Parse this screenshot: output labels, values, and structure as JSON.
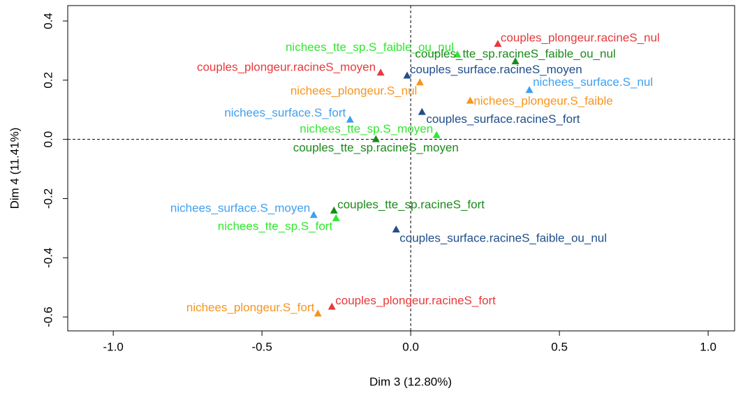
{
  "chart_data": {
    "type": "scatter",
    "xlabel": "Dim 3 (12.80%)",
    "ylabel": "Dim 4 (11.41%)",
    "labels": [
      "couples_plongeur.racineS_nul",
      "nichees_tte_sp.S_faible_ou_nul",
      "couples_tte_sp.racineS_faible_ou_nul",
      "couples_plongeur.racineS_moyen",
      "couples_surface.racineS_moyen",
      "nichees_plongeur.S_nul",
      "nichees_surface.S_nul",
      "nichees_plongeur.S_faible",
      "nichees_surface.S_fort",
      "couples_surface.racineS_fort",
      "nichees_tte_sp.S_moyen",
      "couples_tte_sp.racineS_moyen",
      "nichees_surface.S_moyen",
      "couples_tte_sp.racineS_fort",
      "nichees_tte_sp.S_fort",
      "couples_surface.racineS_faible_ou_nul",
      "couples_plongeur.racineS_fort",
      "nichees_plongeur.S_fort"
    ],
    "x": [
      0.293,
      0.157,
      0.352,
      -0.101,
      -0.012,
      0.031,
      0.399,
      0.2,
      -0.204,
      0.038,
      0.087,
      -0.117,
      -0.326,
      -0.258,
      -0.251,
      -0.049,
      -0.265,
      -0.312
    ],
    "values": [
      0.322,
      0.286,
      0.263,
      0.225,
      0.215,
      0.192,
      0.166,
      0.13,
      0.066,
      0.092,
      0.014,
      0.0,
      -0.256,
      -0.241,
      -0.267,
      -0.305,
      -0.566,
      -0.589
    ],
    "colors": [
      "#e8393b",
      "#2ee82e",
      "#1a8a1a",
      "#e8393b",
      "#1f4e8c",
      "#f7941d",
      "#3fa0f0",
      "#f7941d",
      "#3fa0f0",
      "#1f4e8c",
      "#2ee82e",
      "#1a8a1a",
      "#3fa0f0",
      "#1a8a1a",
      "#2ee82e",
      "#1f4e8c",
      "#e8393b",
      "#f7941d"
    ],
    "xlim": [
      -1.153,
      1.089
    ],
    "ylim": [
      -0.647,
      0.452
    ],
    "xticks": [
      {
        "value": -1.0,
        "label": "-1.0"
      },
      -0.5,
      {
        "value": 0.0,
        "label": "0.0"
      },
      0.5,
      {
        "value": 1.0,
        "label": "1.0"
      }
    ],
    "yticks": [
      -0.6,
      -0.4,
      -0.2,
      {
        "value": 0.0,
        "label": "0.0"
      },
      0.2,
      0.4
    ],
    "zero_lines": true
  }
}
